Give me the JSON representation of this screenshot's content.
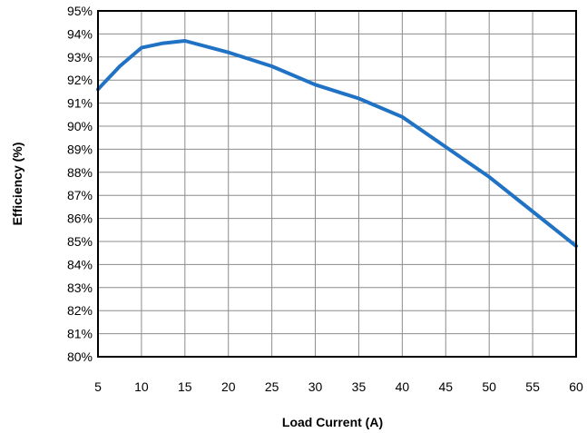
{
  "chart_data": {
    "type": "line",
    "title": "",
    "xlabel": "Load Current (A)",
    "ylabel": "Efficiency (%)",
    "xlim": [
      5,
      60
    ],
    "ylim": [
      80,
      95
    ],
    "x_ticks": [
      5,
      10,
      15,
      20,
      25,
      30,
      35,
      40,
      45,
      50,
      55,
      60
    ],
    "y_ticks": [
      80,
      81,
      82,
      83,
      84,
      85,
      86,
      87,
      88,
      89,
      90,
      91,
      92,
      93,
      94,
      95
    ],
    "x_tick_labels": [
      "5",
      "10",
      "15",
      "20",
      "25",
      "30",
      "35",
      "40",
      "45",
      "50",
      "55",
      "60"
    ],
    "y_tick_labels": [
      "80%",
      "81%",
      "82%",
      "83%",
      "84%",
      "85%",
      "86%",
      "87%",
      "88%",
      "89%",
      "90%",
      "91%",
      "92%",
      "93%",
      "94%",
      "95%"
    ],
    "grid": true,
    "legend": "none",
    "series": [
      {
        "color": "#1f72c4",
        "x": [
          5,
          7.5,
          10,
          12.5,
          15,
          20,
          25,
          30,
          35,
          40,
          45,
          50,
          55,
          60
        ],
        "y": [
          91.6,
          92.6,
          93.4,
          93.6,
          93.7,
          93.2,
          92.6,
          91.8,
          91.2,
          90.4,
          89.1,
          87.8,
          86.3,
          84.8
        ]
      }
    ]
  }
}
